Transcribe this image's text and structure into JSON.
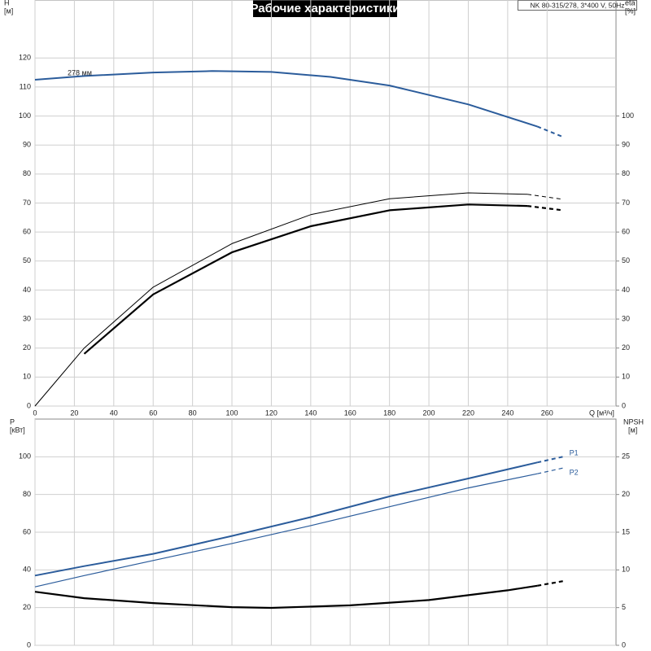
{
  "chart_data": [
    {
      "type": "line",
      "title": "Рабочие характеристики",
      "subtitle": "NK 80-315/278, 3*400 V, 50Hz",
      "ylabel": "H",
      "yunit": "[м]",
      "y2label": "eta",
      "y2unit": "[%]",
      "xlabel": "Q [м³/ч]",
      "xlim": [
        0,
        295
      ],
      "xticks": [
        0,
        20,
        40,
        60,
        80,
        100,
        120,
        140,
        160,
        180,
        200,
        220,
        240,
        260
      ],
      "ylim": [
        0,
        140
      ],
      "yticks": [
        0,
        10,
        20,
        30,
        40,
        50,
        60,
        70,
        80,
        90,
        100,
        110,
        120
      ],
      "y2lim": [
        0,
        140
      ],
      "y2ticks": [
        0,
        10,
        20,
        30,
        40,
        50,
        60,
        70,
        80,
        90,
        100
      ],
      "grid": true,
      "series": [
        {
          "label": "278 мм",
          "color": "#2b5c9b",
          "width": 2,
          "dash_from": 255,
          "x": [
            0,
            25,
            60,
            90,
            120,
            150,
            180,
            220,
            255,
            268
          ],
          "values": [
            112.5,
            113.8,
            115,
            115.5,
            115.2,
            113.5,
            110.5,
            104,
            96.4,
            92.8
          ]
        },
        {
          "axis": "y2",
          "color": "#000000",
          "width": 1,
          "dash_from": 255,
          "x": [
            0,
            10,
            25,
            60,
            100,
            140,
            180,
            220,
            250,
            268
          ],
          "values": [
            0,
            8,
            20,
            41,
            56,
            66,
            71.5,
            73.5,
            73,
            71.3
          ]
        },
        {
          "axis": "y2",
          "color": "#000000",
          "width": 2.2,
          "dash_from": 255,
          "x": [
            25,
            60,
            100,
            140,
            180,
            220,
            250,
            268
          ],
          "values": [
            18,
            38.5,
            53,
            62,
            67.5,
            69.5,
            69,
            67.5
          ]
        }
      ]
    },
    {
      "type": "line",
      "ylabel": "P",
      "yunit": "[кВт]",
      "y2label": "NPSH",
      "y2unit": "[м]",
      "xlim": [
        0,
        295
      ],
      "xticks": [
        0,
        20,
        40,
        60,
        80,
        100,
        120,
        140,
        160,
        180,
        200,
        220,
        240,
        260
      ],
      "ylim": [
        0,
        120
      ],
      "yticks": [
        0,
        20,
        40,
        60,
        80,
        100
      ],
      "y2lim": [
        0,
        30
      ],
      "y2ticks": [
        0,
        5,
        10,
        15,
        20,
        25
      ],
      "grid": true,
      "series": [
        {
          "label": "P1",
          "color": "#2b5c9b",
          "width": 2,
          "dash_from": 255,
          "x": [
            0,
            25,
            60,
            100,
            140,
            180,
            220,
            255,
            268
          ],
          "values": [
            37,
            42,
            48.5,
            58,
            68,
            79,
            88.5,
            97,
            100
          ]
        },
        {
          "label": "P2",
          "color": "#2b5c9b",
          "width": 1.2,
          "dash_from": 255,
          "x": [
            0,
            25,
            60,
            100,
            140,
            180,
            220,
            255,
            268
          ],
          "values": [
            31,
            37,
            45,
            54,
            63.5,
            73.5,
            83.5,
            91,
            94
          ]
        },
        {
          "axis": "y2",
          "color": "#000000",
          "width": 2.2,
          "dash_from": 255,
          "x": [
            0,
            25,
            60,
            100,
            120,
            160,
            200,
            240,
            255,
            268
          ],
          "values": [
            7.1,
            6.25,
            5.6,
            5.06,
            4.96,
            5.3,
            6.0,
            7.3,
            7.9,
            8.5
          ]
        }
      ]
    }
  ]
}
